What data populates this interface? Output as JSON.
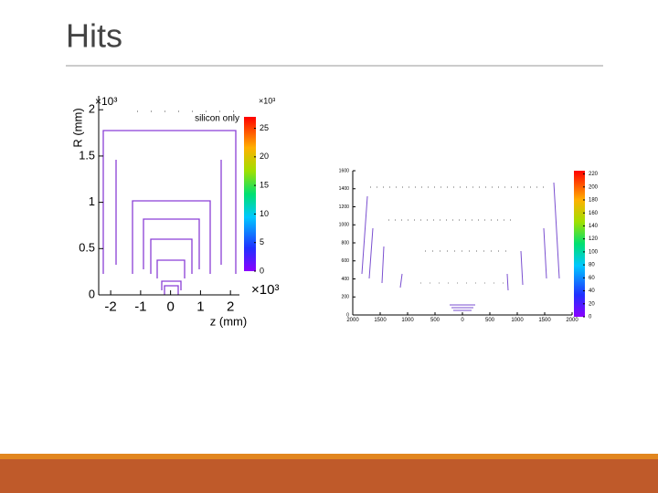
{
  "slide_title": "Hits",
  "chart_data": [
    {
      "type": "heatmap",
      "ylabel": "R (mm)",
      "xlabel": "z (mm)",
      "annotation": "silicon only",
      "x_multiplier": "×10³",
      "y_multiplier": "×10³",
      "z_multiplier": "×10³",
      "xlim": [
        -2.4,
        2.3
      ],
      "xticks": [
        -2,
        -1,
        0,
        1,
        2
      ],
      "ylim": [
        0,
        2.15
      ],
      "yticks": [
        0,
        0.5,
        1,
        1.5,
        2
      ],
      "zlim": [
        0,
        27
      ],
      "zticks": [
        0,
        5,
        10,
        15,
        20,
        25
      ]
    },
    {
      "type": "heatmap",
      "xlim": [
        -2000,
        2000
      ],
      "xticks": [
        {
          "value": -2000,
          "label": "2000"
        },
        {
          "value": -1500,
          "label": "1500"
        },
        {
          "value": -1000,
          "label": "1000"
        },
        {
          "value": -500,
          "label": "500"
        },
        0,
        500,
        1000,
        1500,
        2000
      ],
      "ylim": [
        0,
        1600
      ],
      "yticks": [
        0,
        200,
        400,
        600,
        800,
        1000,
        1200,
        1400,
        1600
      ],
      "zlim": [
        0,
        225
      ],
      "zticks": [
        0,
        20,
        40,
        60,
        80,
        100,
        120,
        140,
        160,
        180,
        200,
        220
      ]
    }
  ]
}
